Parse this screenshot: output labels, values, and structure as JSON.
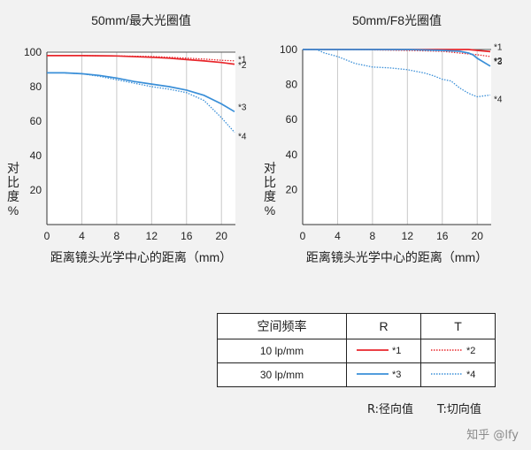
{
  "chart_data": [
    {
      "type": "line",
      "title": "50mm/最大光圈值",
      "xlabel": "距离镜头光学中心的距离（mm）",
      "ylabel": "对比度%",
      "xlim": [
        0,
        21.6
      ],
      "ylim": [
        0,
        100
      ],
      "xticks": [
        0,
        4,
        8,
        12,
        16,
        20
      ],
      "yticks": [
        20,
        40,
        60,
        80,
        100
      ],
      "grid": "vertical",
      "series": [
        {
          "name": "*1",
          "color": "#e8262b",
          "style": "solid",
          "x": [
            0,
            4,
            8,
            12,
            14,
            16,
            18,
            20,
            21.5
          ],
          "y": [
            98,
            98,
            97.8,
            97,
            96.5,
            95.7,
            94.9,
            94,
            93
          ]
        },
        {
          "name": "*2",
          "color": "#e8262b",
          "style": "dotted",
          "x": [
            0,
            4,
            8,
            12,
            14,
            16,
            18,
            20,
            21.5
          ],
          "y": [
            98,
            98,
            97.8,
            97.5,
            97,
            96.5,
            96,
            95.3,
            95
          ]
        },
        {
          "name": "*3",
          "color": "#3a8fd8",
          "style": "solid",
          "x": [
            0,
            2,
            4,
            6,
            8,
            10,
            12,
            14,
            16,
            18,
            20,
            21.5
          ],
          "y": [
            88,
            88,
            87.5,
            86.5,
            85,
            83,
            81.5,
            80,
            78,
            75,
            70,
            65.5
          ]
        },
        {
          "name": "*4",
          "color": "#3a8fd8",
          "style": "dotted",
          "x": [
            0,
            2,
            4,
            6,
            8,
            10,
            12,
            14,
            16,
            18,
            20,
            21.5
          ],
          "y": [
            88,
            88,
            87.5,
            86,
            84,
            82,
            80,
            78.5,
            76.5,
            72,
            62,
            53.5
          ]
        }
      ]
    },
    {
      "type": "line",
      "title": "50mm/F8光圈值",
      "xlabel": "距离镜头光学中心的距离（mm）",
      "ylabel": "对比度%",
      "xlim": [
        0,
        21.6
      ],
      "ylim": [
        0,
        100
      ],
      "xticks": [
        0,
        4,
        8,
        12,
        16,
        20
      ],
      "yticks": [
        20,
        40,
        60,
        80,
        100
      ],
      "grid": "vertical",
      "series": [
        {
          "name": "*1",
          "color": "#e8262b",
          "style": "solid",
          "x": [
            0,
            4,
            8,
            12,
            16,
            18,
            19,
            20,
            21.5
          ],
          "y": [
            100,
            100,
            100,
            100,
            100,
            100,
            100,
            99.5,
            98.8
          ]
        },
        {
          "name": "*2",
          "color": "#e8262b",
          "style": "dotted",
          "x": [
            0,
            4,
            8,
            12,
            16,
            18,
            19,
            20,
            21.5
          ],
          "y": [
            100,
            100,
            99.8,
            99.5,
            99,
            98,
            97.5,
            97,
            96
          ]
        },
        {
          "name": "*3",
          "color": "#3a8fd8",
          "style": "solid",
          "x": [
            0,
            4,
            8,
            12,
            16,
            18,
            19,
            19.5,
            20,
            21.5
          ],
          "y": [
            100,
            100,
            100,
            100,
            99.5,
            99,
            98,
            97,
            95,
            90.5
          ]
        },
        {
          "name": "*4",
          "color": "#3a8fd8",
          "style": "dotted",
          "x": [
            0,
            1.6,
            2.5,
            4,
            6,
            8,
            10,
            12,
            14,
            15,
            16,
            17,
            18,
            19,
            20,
            21.5
          ],
          "y": [
            100,
            100,
            98,
            96,
            92,
            90,
            89.5,
            88.5,
            86.5,
            85,
            83,
            82,
            78,
            75,
            73,
            74
          ]
        }
      ]
    }
  ],
  "legend": {
    "header": {
      "label": "空间频率",
      "r": "R",
      "t": "T"
    },
    "rows": [
      {
        "freq": "10 lp/mm",
        "r_label": "*1",
        "t_label": "*2",
        "color": "#e8262b"
      },
      {
        "freq": "30 lp/mm",
        "r_label": "*3",
        "t_label": "*4",
        "color": "#3a8fd8"
      }
    ],
    "note_r": "R:径向值",
    "note_t": "T:切向值"
  },
  "watermark": "知乎 @lfy"
}
